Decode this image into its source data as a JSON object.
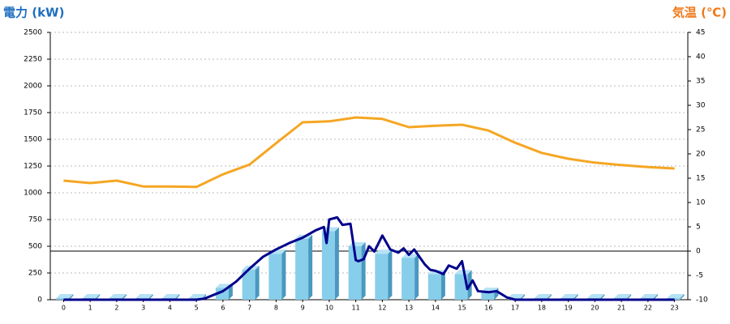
{
  "chart_data": {
    "type": "combo",
    "title": "電力 (kW)",
    "y2_title": "気温 (℃)",
    "title_color": "#1f6fc0",
    "y2_title_color": "#f07818",
    "categories": [
      "0",
      "1",
      "2",
      "3",
      "4",
      "5",
      "6",
      "7",
      "8",
      "9",
      "10",
      "11",
      "12",
      "13",
      "14",
      "15",
      "16",
      "17",
      "18",
      "19",
      "20",
      "21",
      "22",
      "23"
    ],
    "ylim": [
      0,
      2500
    ],
    "yticks": [
      0,
      250,
      500,
      750,
      1000,
      1250,
      1500,
      1750,
      2000,
      2250,
      2500
    ],
    "y2lim": [
      -10,
      45
    ],
    "y2ticks": [
      -10,
      -5,
      0,
      5,
      10,
      15,
      20,
      25,
      30,
      35,
      40,
      45
    ],
    "grid": true,
    "series": [
      {
        "type": "bar",
        "color": "#87ceeb",
        "values": [
          15,
          15,
          15,
          15,
          15,
          15,
          110,
          280,
          430,
          570,
          640,
          500,
          430,
          390,
          240,
          240,
          75,
          15,
          15,
          15,
          15,
          15,
          15,
          15
        ]
      },
      {
        "type": "line",
        "color": "#00008b",
        "x": [
          0,
          5,
          5.3,
          6,
          6.5,
          7,
          7.5,
          8,
          8.5,
          9,
          9.5,
          9.8,
          9.9,
          10,
          10.3,
          10.5,
          10.8,
          11,
          11.1,
          11.3,
          11.5,
          11.7,
          12,
          12.3,
          12.6,
          12.8,
          13,
          13.2,
          13.4,
          13.6,
          13.8,
          14,
          14.3,
          14.5,
          14.8,
          15,
          15.2,
          15.4,
          15.6,
          16,
          16.3,
          16.7,
          17,
          23
        ],
        "values": [
          0,
          0,
          10,
          80,
          170,
          290,
          400,
          470,
          530,
          580,
          650,
          680,
          530,
          750,
          770,
          700,
          710,
          370,
          360,
          380,
          500,
          450,
          600,
          470,
          440,
          480,
          420,
          470,
          400,
          330,
          280,
          270,
          240,
          320,
          290,
          360,
          100,
          180,
          80,
          70,
          80,
          20,
          0,
          0
        ]
      },
      {
        "type": "line",
        "axis": "y2",
        "color": "#f5a623",
        "values": [
          14.5,
          14.0,
          14.5,
          13.3,
          13.3,
          13.2,
          15.8,
          17.8,
          22.2,
          26.5,
          26.7,
          27.5,
          27.2,
          25.5,
          25.8,
          26.0,
          24.8,
          22.3,
          20.2,
          19.0,
          18.2,
          17.7,
          17.3,
          17.0
        ]
      }
    ]
  }
}
